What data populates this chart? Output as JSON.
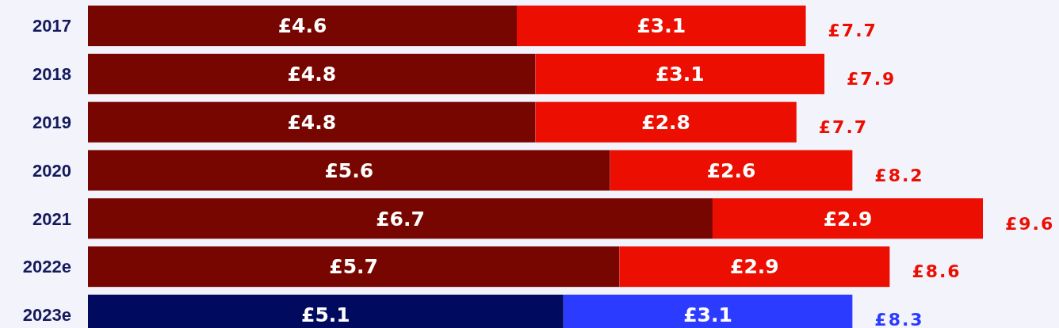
{
  "chart_data": {
    "type": "bar",
    "orientation": "horizontal",
    "stacked": true,
    "categories": [
      "2017",
      "2018",
      "2019",
      "2020",
      "2021",
      "2022e",
      "2023e"
    ],
    "series": [
      {
        "colors": [
          "#780600",
          "#780600",
          "#780600",
          "#780600",
          "#780600",
          "#780600",
          "#000a5e"
        ],
        "values": [
          4.6,
          4.8,
          4.8,
          5.6,
          6.7,
          5.7,
          5.1
        ],
        "value_labels": [
          "£4.6",
          "£4.8",
          "£4.8",
          "£5.6",
          "£6.7",
          "£5.7",
          "£5.1"
        ]
      },
      {
        "colors": [
          "#ec0e00",
          "#ec0e00",
          "#ec0e00",
          "#ec0e00",
          "#ec0e00",
          "#ec0e00",
          "#2b3bff"
        ],
        "values": [
          3.1,
          3.1,
          2.8,
          2.6,
          2.9,
          2.9,
          3.1
        ],
        "value_labels": [
          "£3.1",
          "£3.1",
          "£2.8",
          "£2.6",
          "£2.9",
          "£2.9",
          "£3.1"
        ]
      }
    ],
    "totals": [
      "£7.7",
      "£7.9",
      "£7.7",
      "£8.2",
      "£9.6",
      "£8.6",
      "£8.3"
    ]
  }
}
